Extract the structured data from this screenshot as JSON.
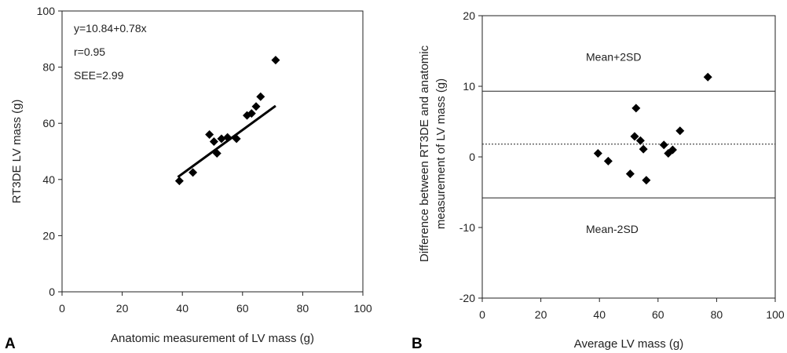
{
  "chart_data": [
    {
      "type": "scatter",
      "panel_label": "A",
      "title": "",
      "xlabel": "Anatomic measurement of LV mass (g)",
      "ylabel": "RT3DE LV mass (g)",
      "xlim": [
        0,
        100
      ],
      "ylim": [
        0,
        100
      ],
      "xticks": [
        "0",
        "20",
        "40",
        "60",
        "80",
        "100"
      ],
      "yticks": [
        "0",
        "20",
        "40",
        "60",
        "80",
        "100"
      ],
      "annotations": [
        "y=10.84+0.78x",
        "r=0.95",
        "SEE=2.99"
      ],
      "grid": false,
      "series": [
        {
          "marker": "diamond",
          "points": [
            [
              39,
              39.5
            ],
            [
              43.5,
              42.5
            ],
            [
              49,
              56
            ],
            [
              50.5,
              53.5
            ],
            [
              51.5,
              49.3
            ],
            [
              53,
              54.5
            ],
            [
              55,
              55
            ],
            [
              58,
              54.5
            ],
            [
              61.5,
              62.8
            ],
            [
              63,
              63.5
            ],
            [
              64.5,
              66
            ],
            [
              66,
              69.5
            ],
            [
              71,
              82.5
            ]
          ]
        }
      ],
      "regression_line": {
        "intercept": 10.84,
        "slope": 0.78,
        "x_range": [
          38.5,
          71
        ]
      }
    },
    {
      "type": "scatter",
      "panel_label": "B",
      "title": "",
      "xlabel": "Average LV mass (g)",
      "ylabel": "Difference between RT3DE and anatomic measurement of LV mass (g)",
      "ylabel_lines": [
        "Difference between RT3DE and anatomic",
        "measurement of LV mass (g)"
      ],
      "xlim": [
        0,
        100
      ],
      "ylim": [
        -20,
        20
      ],
      "xticks": [
        "0",
        "20",
        "40",
        "60",
        "80",
        "100"
      ],
      "yticks": [
        "-20",
        "-10",
        "0",
        "10",
        "20"
      ],
      "grid": false,
      "series": [
        {
          "marker": "diamond",
          "points": [
            [
              39.5,
              0.5
            ],
            [
              43,
              -0.6
            ],
            [
              50.5,
              -2.4
            ],
            [
              52,
              2.9
            ],
            [
              52.5,
              6.9
            ],
            [
              54,
              2.3
            ],
            [
              55,
              1.1
            ],
            [
              56,
              -3.3
            ],
            [
              62,
              1.7
            ],
            [
              63.5,
              0.5
            ],
            [
              65,
              1.0
            ],
            [
              67.5,
              3.7
            ],
            [
              77,
              11.3
            ]
          ]
        }
      ],
      "reference_lines": [
        {
          "label": "Mean+2SD",
          "y": 9.3,
          "style": "solid"
        },
        {
          "label": "",
          "y": 1.8,
          "style": "dotted"
        },
        {
          "label": "Mean-2SD",
          "y": -5.8,
          "style": "solid"
        }
      ]
    }
  ]
}
